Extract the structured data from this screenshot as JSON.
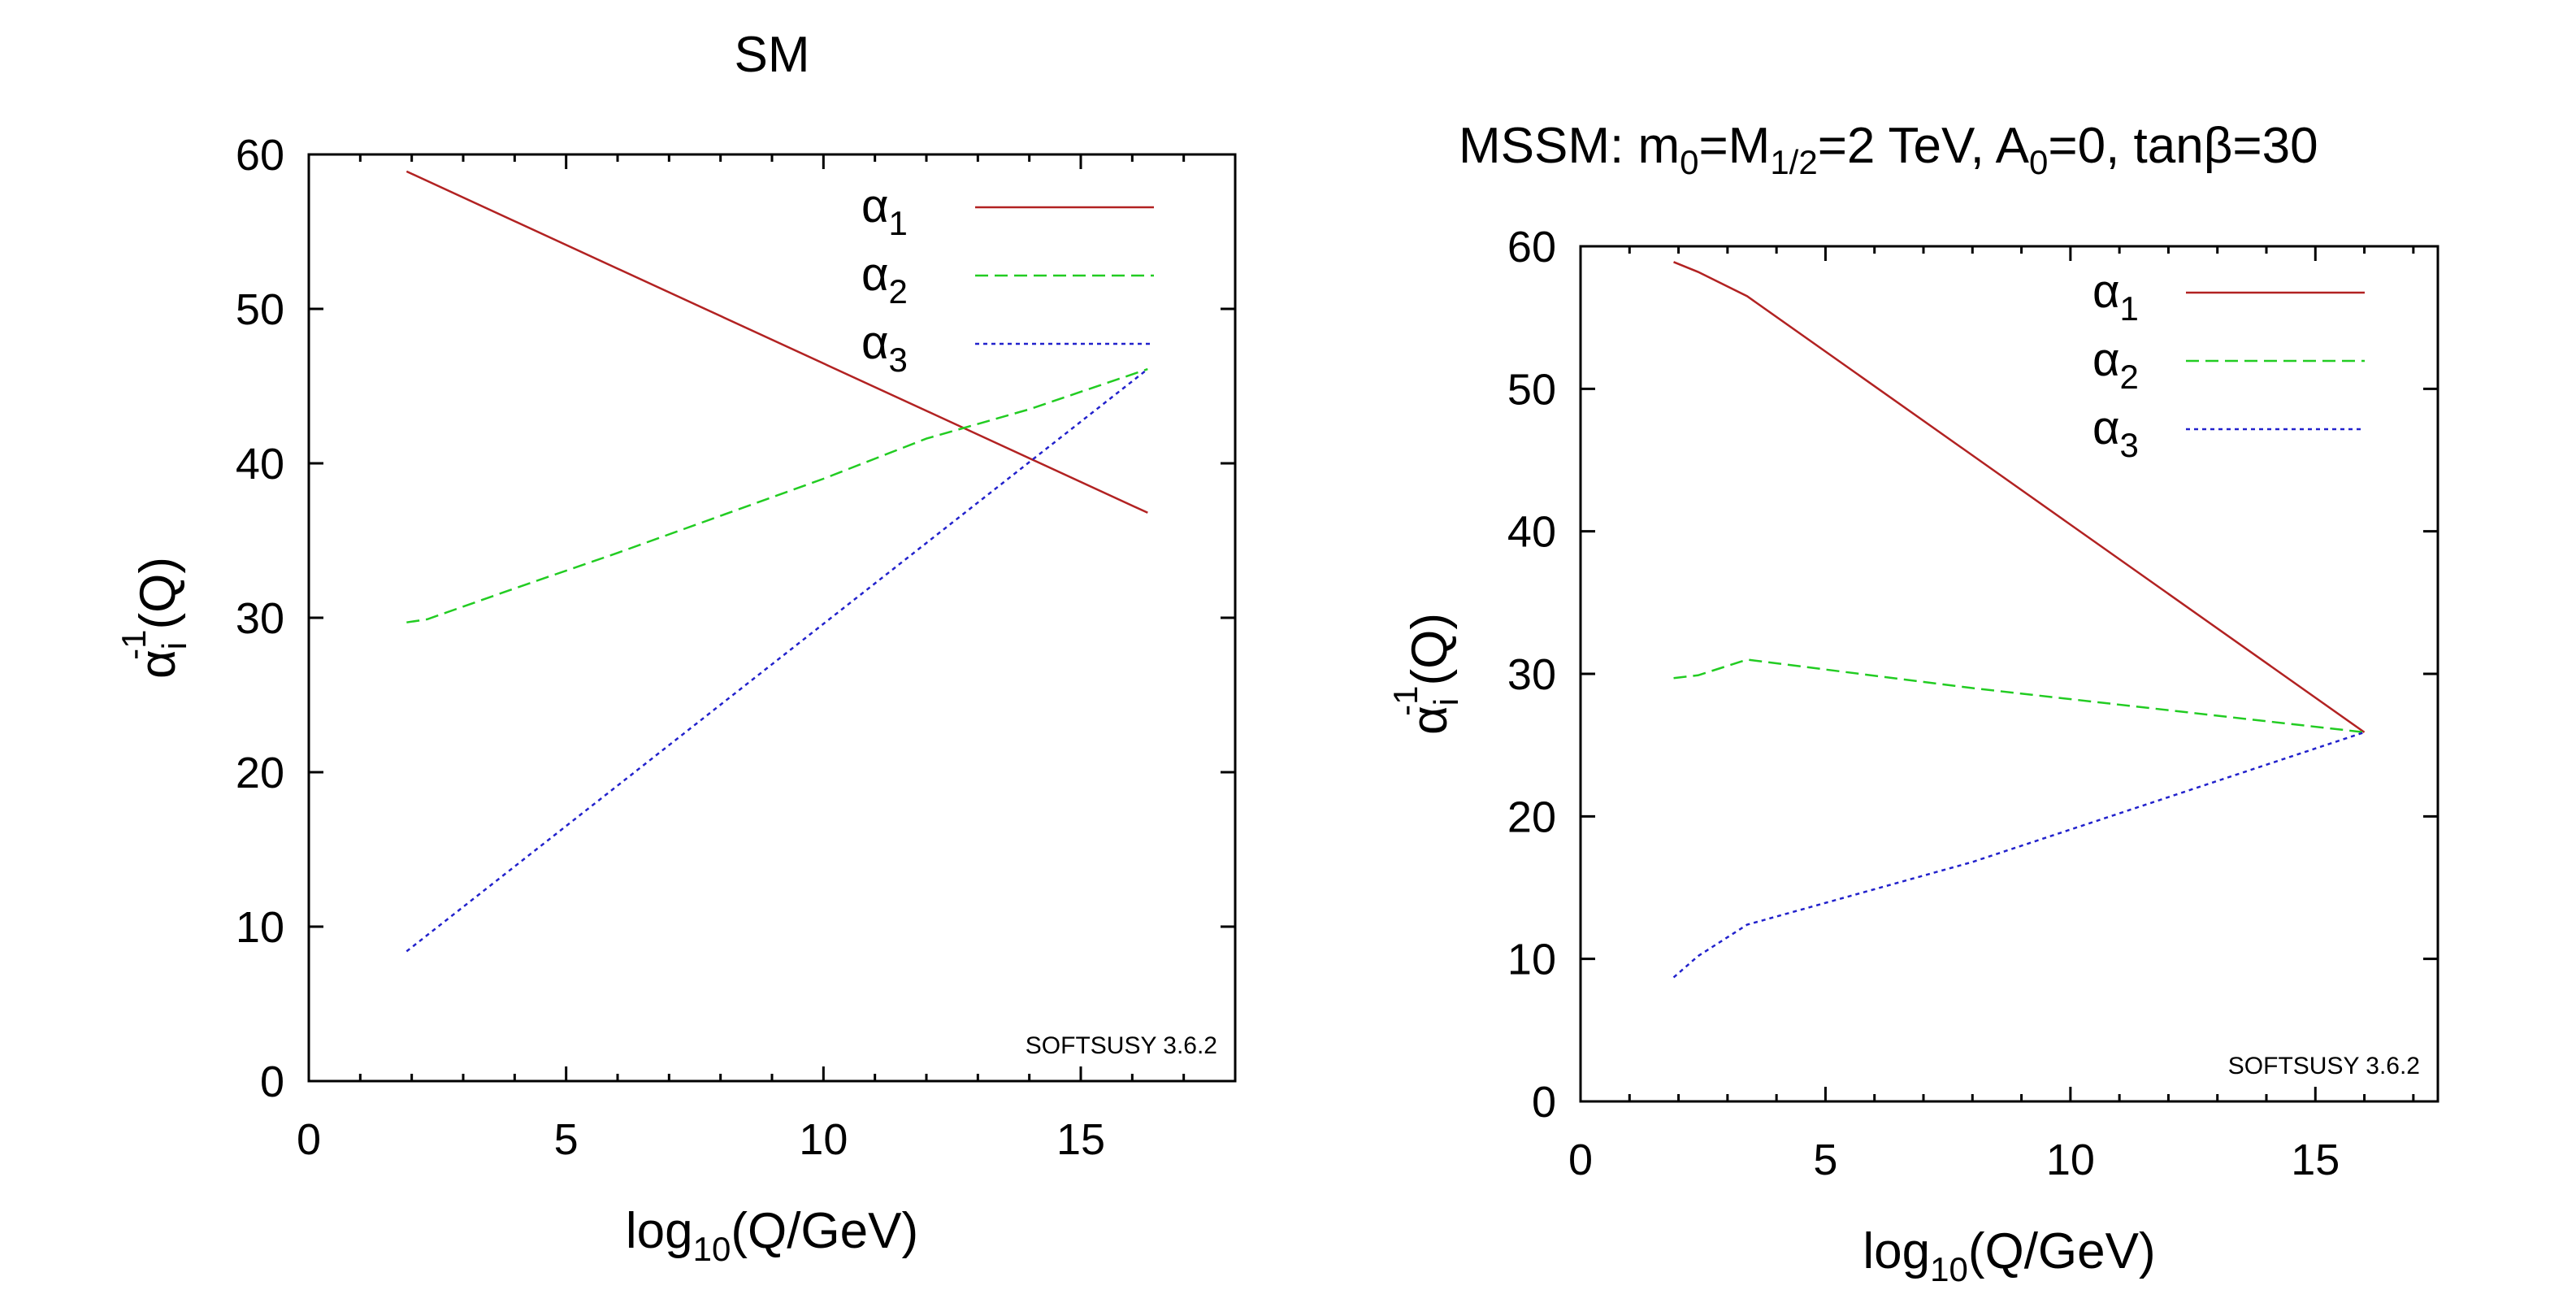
{
  "chart_data": [
    {
      "type": "line",
      "title": "SM",
      "xlabel": {
        "main": "log",
        "sub": "10",
        "rest": "(Q/GeV)"
      },
      "ylabel": {
        "main": "α",
        "sub": "i",
        "sup": "-1",
        "rest": "(Q)"
      },
      "xlim": [
        0,
        18
      ],
      "ylim": [
        0,
        60
      ],
      "xticks": [
        0,
        5,
        10,
        15
      ],
      "yticks": [
        0,
        10,
        20,
        30,
        40,
        50,
        60
      ],
      "legend_position": "top-right",
      "watermark": "SOFTSUSY 3.6.2",
      "series": [
        {
          "name": "α",
          "sub": "1",
          "color": "#b22222",
          "dash": "solid",
          "x": [
            1.9,
            16.3
          ],
          "y": [
            58.9,
            36.8
          ]
        },
        {
          "name": "α",
          "sub": "2",
          "color": "#22cc22",
          "dash": "dashed",
          "x": [
            1.9,
            2.3,
            4,
            6,
            8,
            10,
            12,
            14,
            16.3
          ],
          "y": [
            29.7,
            29.9,
            31.9,
            34.2,
            36.6,
            39.0,
            41.6,
            43.5,
            46.1
          ]
        },
        {
          "name": "α",
          "sub": "3",
          "color": "#2222cc",
          "dash": "dotted",
          "x": [
            1.9,
            16.3
          ],
          "y": [
            8.4,
            46.1
          ]
        }
      ]
    },
    {
      "type": "line",
      "title": {
        "pre": "MSSM: m",
        "s1": "0",
        "mid1": "=M",
        "s2": "1/2",
        "mid2": "=2 TeV, A",
        "s3": "0",
        "post": "=0, tanβ=30"
      },
      "xlabel": {
        "main": "log",
        "sub": "10",
        "rest": "(Q/GeV)"
      },
      "ylabel": {
        "main": "α",
        "sub": "i",
        "sup": "-1",
        "rest": "(Q)"
      },
      "xlim": [
        0,
        17.5
      ],
      "ylim": [
        0,
        60
      ],
      "xticks": [
        0,
        5,
        10,
        15
      ],
      "yticks": [
        0,
        10,
        20,
        30,
        40,
        50,
        60
      ],
      "legend_position": "top-right",
      "watermark": "SOFTSUSY 3.6.2",
      "series": [
        {
          "name": "α",
          "sub": "1",
          "color": "#b22222",
          "dash": "solid",
          "x": [
            1.9,
            2.4,
            3.4,
            16.0
          ],
          "y": [
            58.9,
            58.2,
            56.5,
            25.9
          ]
        },
        {
          "name": "α",
          "sub": "2",
          "color": "#22cc22",
          "dash": "dashed",
          "x": [
            1.9,
            2.4,
            3.4,
            8,
            16.0
          ],
          "y": [
            29.7,
            29.9,
            31.0,
            29.0,
            25.9
          ]
        },
        {
          "name": "α",
          "sub": "3",
          "color": "#2222cc",
          "dash": "dotted",
          "x": [
            1.9,
            2.4,
            3.4,
            8,
            16.0
          ],
          "y": [
            8.7,
            10.2,
            12.4,
            16.8,
            25.9
          ]
        }
      ]
    }
  ]
}
